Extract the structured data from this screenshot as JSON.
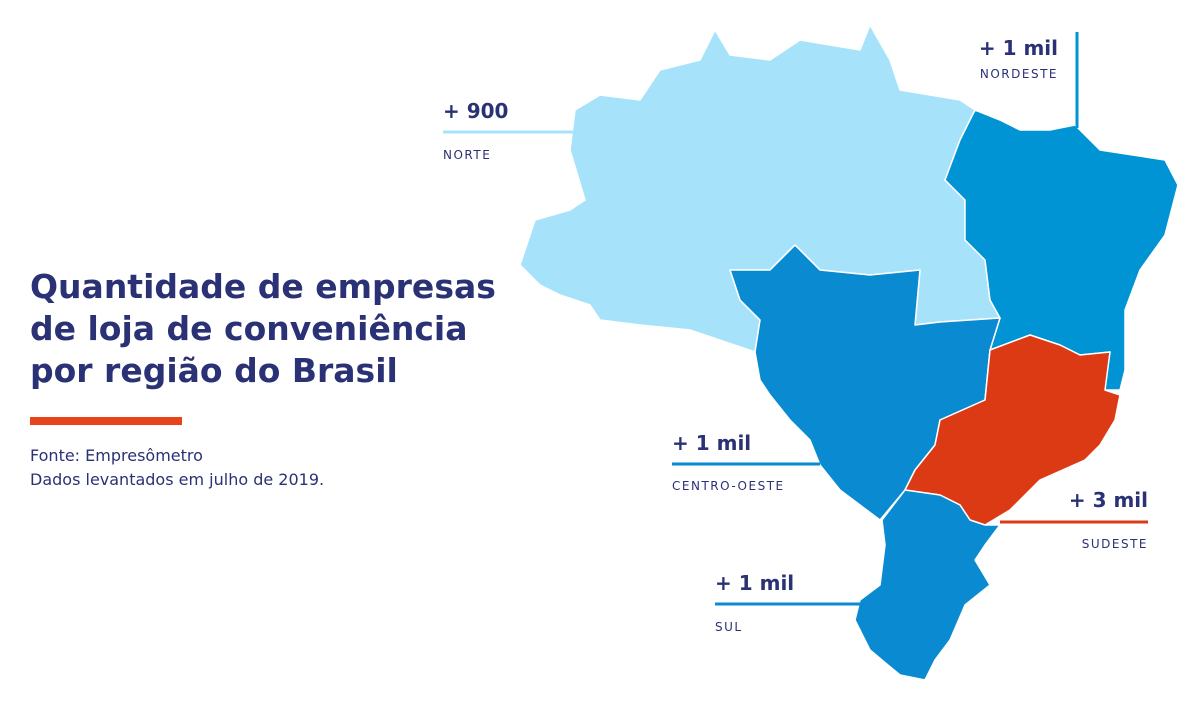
{
  "title_lines": [
    "Quantidade de empresas",
    "de loja de conveniência",
    "por região do Brasil"
  ],
  "source": "Fonte: Empresômetro",
  "note": "Dados levantados em julho de 2019.",
  "regions": [
    {
      "label": "+ 900",
      "name": "NORTE"
    },
    {
      "label": "+ 1 mil",
      "name": "NORDESTE"
    },
    {
      "label": "+ 1 mil",
      "name": "CENTRO-OESTE"
    },
    {
      "label": "+ 3 mil",
      "name": "SUDESTE"
    },
    {
      "label": "+ 1 mil",
      "name": "SUL"
    }
  ]
}
